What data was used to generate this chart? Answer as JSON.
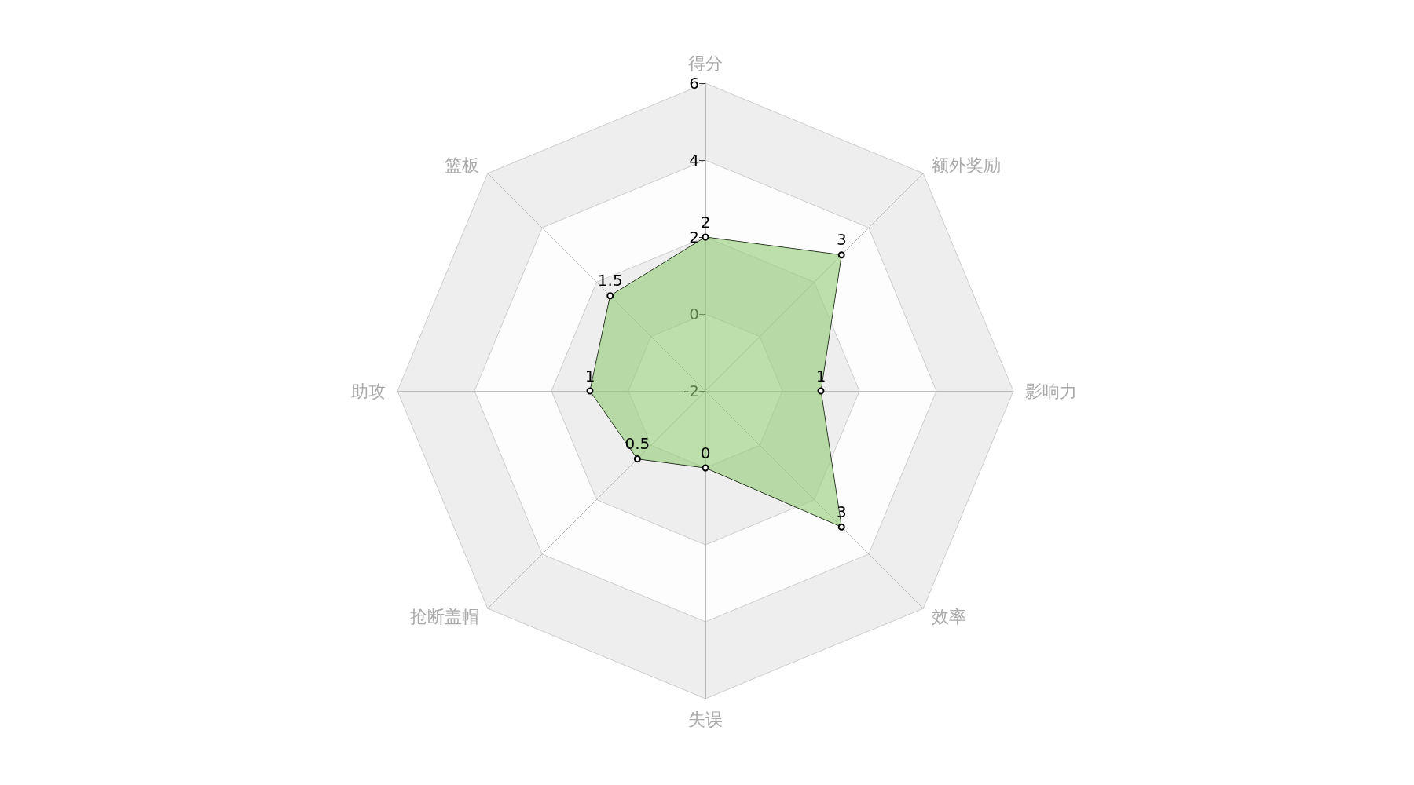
{
  "chart_data": {
    "type": "radar",
    "categories": [
      "得分",
      "额外奖励",
      "影响力",
      "效率",
      "失误",
      "抢断盖帽",
      "助攻",
      "篮板"
    ],
    "series": [
      {
        "color": "#91cc75",
        "values": [
          2,
          3,
          1,
          3,
          0,
          0.5,
          1,
          1.5
        ]
      }
    ],
    "ylim": [
      -2,
      6
    ],
    "yticks": [
      -2,
      0,
      2,
      4,
      6
    ],
    "data_labels": true,
    "marker": "circle",
    "line_style": "solid"
  }
}
